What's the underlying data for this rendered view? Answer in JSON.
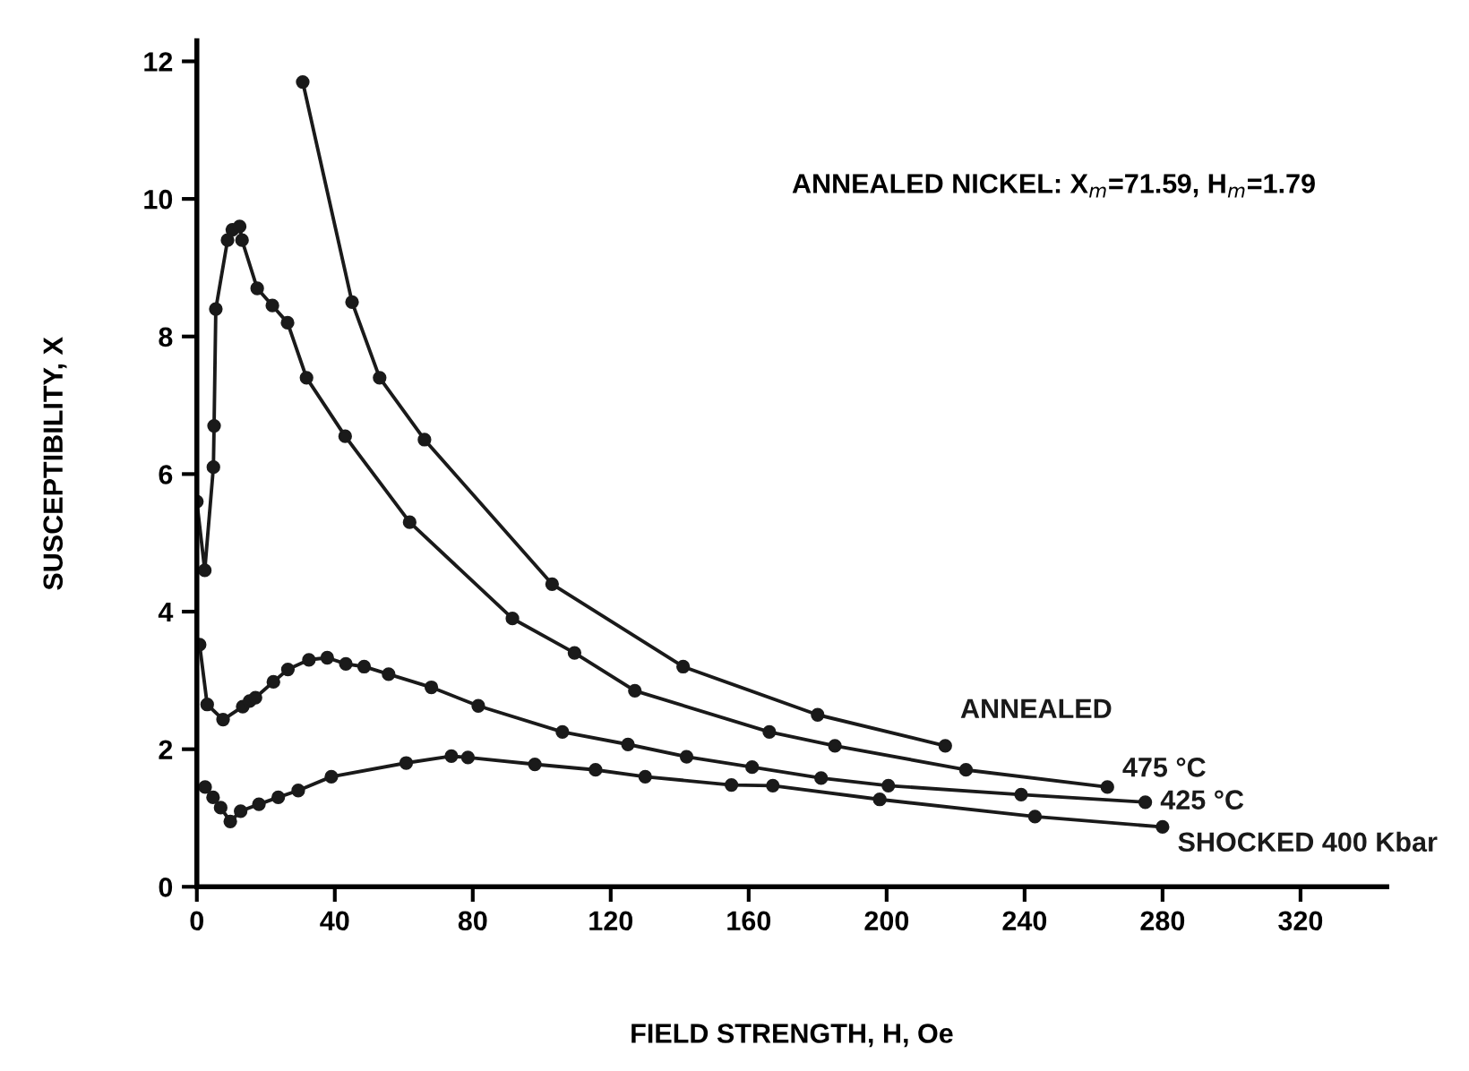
{
  "chart_data": {
    "type": "line",
    "xlabel": "FIELD STRENGTH, H, Oe",
    "ylabel": "SUSCEPTIBILITY, X",
    "annotations": [
      "ANNEALED NICKEL: X$_{m}$=71.59, H$_{m}$=1.79"
    ],
    "xlim": [
      0,
      345
    ],
    "ylim": [
      0,
      12.3
    ],
    "xticks": [
      0,
      40,
      80,
      120,
      160,
      200,
      240,
      280,
      320
    ],
    "yticks": [
      0,
      2,
      4,
      6,
      8,
      10,
      12
    ],
    "grid": false,
    "legend": false,
    "marker": "circle",
    "line_style": "solid",
    "series": [
      {
        "name": "ANNEALED",
        "color": "#1a1a1a",
        "x": [
          30.7,
          45,
          53,
          66,
          103,
          141,
          180,
          217
        ],
        "values": [
          11.7,
          8.5,
          7.4,
          6.5,
          4.4,
          3.2,
          2.5,
          2.05
        ]
      },
      {
        "name": "475 °C",
        "color": "#1a1a1a",
        "x": [
          0,
          2.3,
          4.8,
          5.0,
          5.5,
          8.9,
          10.3,
          12.4,
          13.1,
          17.5,
          21.9,
          26.3,
          31.8,
          43,
          61.7,
          91.5,
          109.5,
          127,
          166,
          185,
          223,
          264
        ],
        "values": [
          5.6,
          4.6,
          6.1,
          6.7,
          8.4,
          9.4,
          9.55,
          9.6,
          9.4,
          8.7,
          8.45,
          8.2,
          7.4,
          6.55,
          5.3,
          3.9,
          3.4,
          2.85,
          2.25,
          2.05,
          1.7,
          1.45
        ]
      },
      {
        "name": "425 °C",
        "color": "#1a1a1a",
        "x": [
          0.8,
          3.0,
          7.6,
          13.3,
          15.3,
          17,
          22.2,
          26.4,
          32.5,
          37.8,
          43.2,
          48.5,
          55.6,
          68,
          81.6,
          106,
          125,
          142,
          161,
          181,
          200.5,
          239,
          275
        ],
        "values": [
          3.52,
          2.65,
          2.43,
          2.62,
          2.7,
          2.75,
          2.98,
          3.16,
          3.3,
          3.33,
          3.24,
          3.2,
          3.09,
          2.9,
          2.63,
          2.25,
          2.07,
          1.89,
          1.74,
          1.58,
          1.47,
          1.34,
          1.23
        ]
      },
      {
        "name": "SHOCKED 400 Kbar",
        "color": "#1a1a1a",
        "x": [
          2.4,
          4.7,
          6.9,
          9.7,
          12.7,
          18,
          23.6,
          29.4,
          39,
          60.7,
          73.8,
          78.6,
          98,
          115.6,
          130,
          155,
          167,
          198,
          243,
          280
        ],
        "values": [
          1.45,
          1.3,
          1.15,
          0.95,
          1.1,
          1.2,
          1.3,
          1.4,
          1.6,
          1.8,
          1.9,
          1.88,
          1.78,
          1.7,
          1.6,
          1.48,
          1.47,
          1.27,
          1.02,
          0.87
        ]
      }
    ]
  }
}
